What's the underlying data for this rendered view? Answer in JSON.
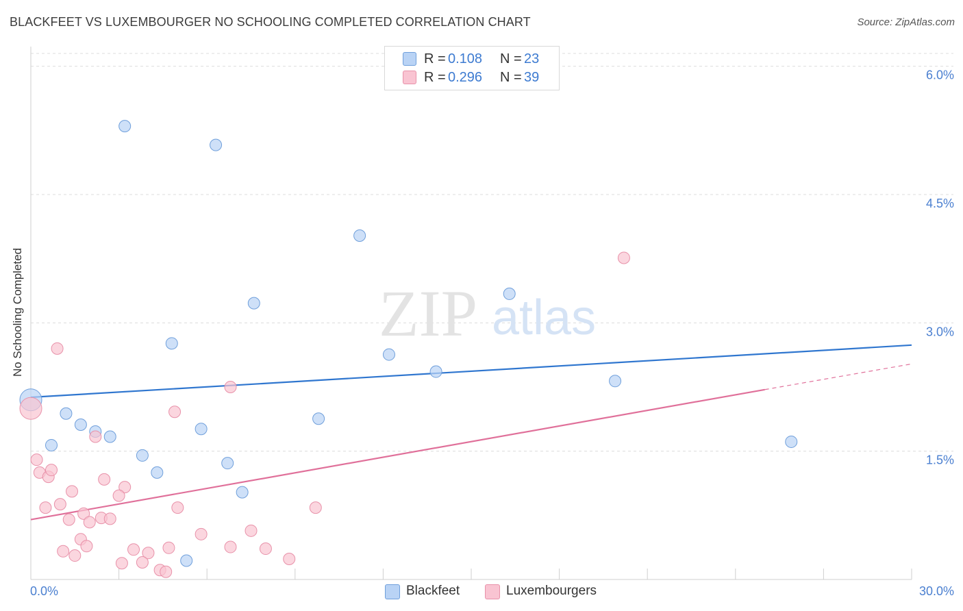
{
  "title": "BLACKFEET VS LUXEMBOURGER NO SCHOOLING COMPLETED CORRELATION CHART",
  "source": "Source: ZipAtlas.com",
  "watermark": {
    "zip": "ZIP",
    "atlas": "atlas"
  },
  "colors": {
    "blue_fill": "#b9d3f5",
    "blue_stroke": "#6f9fdb",
    "blue_line": "#2f76cf",
    "pink_fill": "#f9c4d2",
    "pink_stroke": "#e891a9",
    "pink_line": "#e0709a",
    "tick_label": "#4a7fd0",
    "grid": "#dcdcdc"
  },
  "legend": {
    "rows": [
      {
        "series": "blackfeet",
        "r_label": "R =",
        "r_value": "0.108",
        "n_label": "N =",
        "n_value": "23"
      },
      {
        "series": "luxembourgers",
        "r_label": "R =",
        "r_value": "0.296",
        "n_label": "N =",
        "n_value": "39"
      }
    ]
  },
  "chart_data": {
    "type": "scatter",
    "title": "BLACKFEET VS LUXEMBOURGER NO SCHOOLING COMPLETED CORRELATION CHART",
    "xlabel": "",
    "ylabel": "No Schooling Completed",
    "xlim": [
      0,
      30
    ],
    "ylim": [
      0,
      6.15
    ],
    "x_tick_labels": [
      "0.0%",
      "30.0%"
    ],
    "y_ticks": [
      1.5,
      3.0,
      4.5,
      6.0
    ],
    "y_tick_labels": [
      "1.5%",
      "3.0%",
      "4.5%",
      "6.0%"
    ],
    "grid": true,
    "series": [
      {
        "name": "Blackfeet",
        "color": "blue",
        "points": [
          [
            0.0,
            2.1
          ],
          [
            3.2,
            5.3
          ],
          [
            6.3,
            5.08
          ],
          [
            11.2,
            4.02
          ],
          [
            7.6,
            3.23
          ],
          [
            16.3,
            3.34
          ],
          [
            4.8,
            2.76
          ],
          [
            12.2,
            2.63
          ],
          [
            13.8,
            2.43
          ],
          [
            19.9,
            2.32
          ],
          [
            1.2,
            1.94
          ],
          [
            1.7,
            1.81
          ],
          [
            2.2,
            1.73
          ],
          [
            2.7,
            1.67
          ],
          [
            5.8,
            1.76
          ],
          [
            9.8,
            1.88
          ],
          [
            0.7,
            1.57
          ],
          [
            3.8,
            1.45
          ],
          [
            6.7,
            1.36
          ],
          [
            4.3,
            1.25
          ],
          [
            7.2,
            1.02
          ],
          [
            25.9,
            1.61
          ],
          [
            5.3,
            0.22
          ]
        ],
        "trend": {
          "x": [
            0,
            30
          ],
          "y": [
            2.13,
            2.74
          ]
        }
      },
      {
        "name": "Luxembourgers",
        "color": "pink",
        "points": [
          [
            0.0,
            2.0
          ],
          [
            0.9,
            2.7
          ],
          [
            6.8,
            2.25
          ],
          [
            4.9,
            1.96
          ],
          [
            2.2,
            1.67
          ],
          [
            20.2,
            3.76
          ],
          [
            0.2,
            1.4
          ],
          [
            0.3,
            1.25
          ],
          [
            0.6,
            1.2
          ],
          [
            0.7,
            1.28
          ],
          [
            2.5,
            1.17
          ],
          [
            3.2,
            1.08
          ],
          [
            1.4,
            1.03
          ],
          [
            3.0,
            0.98
          ],
          [
            1.0,
            0.88
          ],
          [
            0.5,
            0.84
          ],
          [
            1.8,
            0.77
          ],
          [
            1.3,
            0.7
          ],
          [
            2.0,
            0.67
          ],
          [
            2.4,
            0.72
          ],
          [
            2.7,
            0.71
          ],
          [
            5.0,
            0.84
          ],
          [
            9.7,
            0.84
          ],
          [
            5.8,
            0.53
          ],
          [
            7.5,
            0.57
          ],
          [
            1.7,
            0.47
          ],
          [
            1.9,
            0.39
          ],
          [
            1.1,
            0.33
          ],
          [
            1.5,
            0.28
          ],
          [
            3.5,
            0.35
          ],
          [
            4.7,
            0.37
          ],
          [
            6.8,
            0.38
          ],
          [
            8.0,
            0.36
          ],
          [
            4.0,
            0.31
          ],
          [
            8.8,
            0.24
          ],
          [
            3.1,
            0.19
          ],
          [
            3.8,
            0.2
          ],
          [
            4.4,
            0.11
          ],
          [
            4.6,
            0.09
          ]
        ],
        "trend": {
          "x": [
            0,
            25
          ],
          "y": [
            0.7,
            2.22
          ]
        },
        "trend_dashed": {
          "x": [
            25,
            30
          ],
          "y": [
            2.22,
            2.52
          ]
        }
      }
    ]
  },
  "bottom_legend": [
    {
      "series": "blackfeet",
      "label": "Blackfeet"
    },
    {
      "series": "luxembourgers",
      "label": "Luxembourgers"
    }
  ]
}
